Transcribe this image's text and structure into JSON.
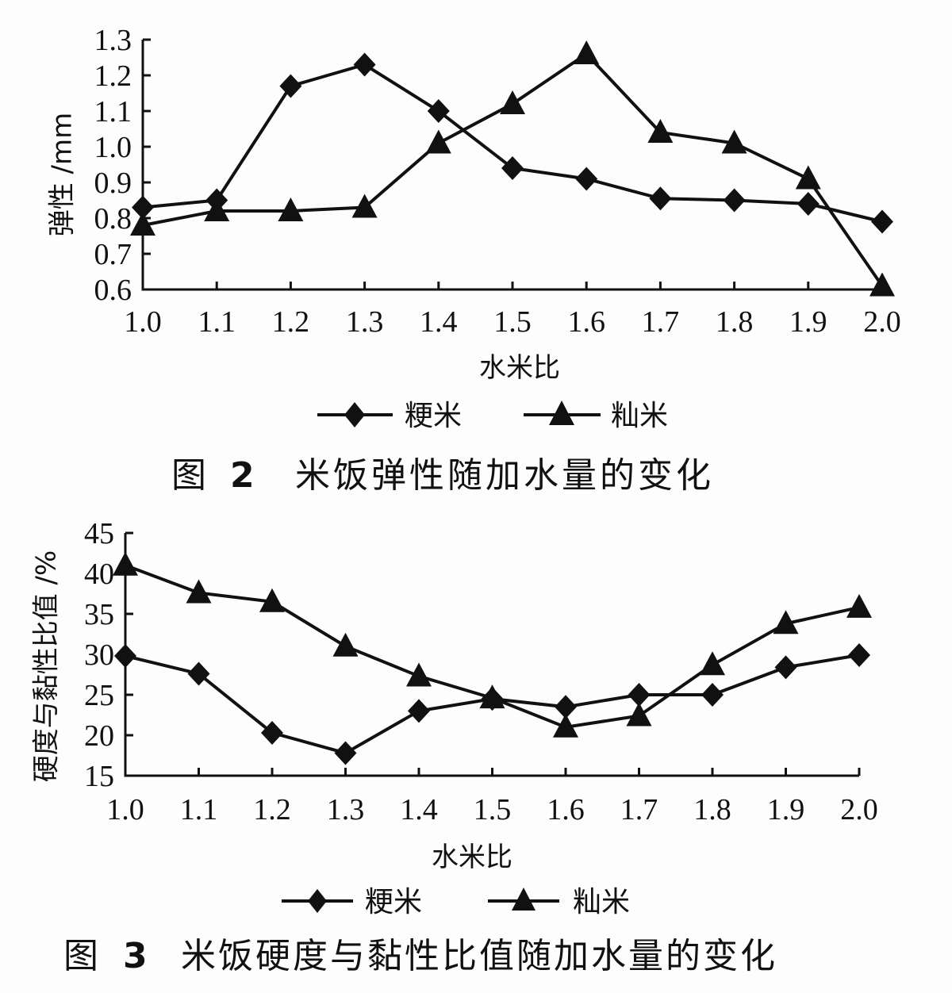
{
  "chart_data": [
    {
      "type": "line",
      "title": "图 2  米饭弹性随加水量的变化",
      "xlabel": "水米比",
      "ylabel": "弹性 /mm",
      "x": [
        1.0,
        1.1,
        1.2,
        1.3,
        1.4,
        1.5,
        1.6,
        1.7,
        1.8,
        1.9,
        2.0
      ],
      "x_tick_labels": [
        "1.0",
        "1.1",
        "1.2",
        "1.3",
        "1.4",
        "1.5",
        "1.6",
        "1.7",
        "1.8",
        "1.9",
        "2.0"
      ],
      "y_tick_labels": [
        "0.6",
        "0.7",
        "0.8",
        "0.9",
        "1.0",
        "1.1",
        "1.2",
        "1.3"
      ],
      "ylim": [
        0.6,
        1.3
      ],
      "grid": false,
      "legend_position": "bottom",
      "series": [
        {
          "name": "粳米",
          "marker": "diamond",
          "values": [
            0.83,
            0.85,
            1.17,
            1.23,
            1.1,
            0.94,
            0.91,
            0.855,
            0.85,
            0.84,
            0.79
          ]
        },
        {
          "name": "籼米",
          "marker": "triangle",
          "values": [
            0.78,
            0.82,
            0.82,
            0.83,
            1.01,
            1.12,
            1.26,
            1.04,
            1.01,
            0.91,
            0.61
          ]
        }
      ]
    },
    {
      "type": "line",
      "title": "图 3  米饭硬度与黏性比值随加水量的变化",
      "xlabel": "水米比",
      "ylabel": "硬度与黏性比值 /%",
      "x": [
        1.0,
        1.1,
        1.2,
        1.3,
        1.4,
        1.5,
        1.6,
        1.7,
        1.8,
        1.9,
        2.0
      ],
      "x_tick_labels": [
        "1.0",
        "1.1",
        "1.2",
        "1.3",
        "1.4",
        "1.5",
        "1.6",
        "1.7",
        "1.8",
        "1.9",
        "2.0"
      ],
      "y_tick_labels": [
        "15",
        "20",
        "25",
        "30",
        "35",
        "40",
        "45"
      ],
      "ylim": [
        15,
        45
      ],
      "grid": false,
      "legend_position": "bottom",
      "series": [
        {
          "name": "粳米",
          "marker": "diamond",
          "values": [
            29.8,
            27.6,
            20.3,
            17.8,
            23.0,
            24.5,
            23.5,
            25.0,
            25.0,
            28.4,
            29.9
          ]
        },
        {
          "name": "籼米",
          "marker": "triangle",
          "values": [
            41.0,
            37.6,
            36.5,
            31.0,
            27.3,
            24.6,
            21.0,
            22.4,
            28.7,
            33.8,
            35.8
          ]
        }
      ]
    }
  ],
  "figure2": {
    "ylabel": "弹性 /mm",
    "xlabel": "水米比",
    "legend": [
      "粳米",
      "籼米"
    ],
    "caption_prefix": "图",
    "caption_number": "2",
    "caption_text": "米饭弹性随加水量的变化"
  },
  "figure3": {
    "ylabel": "硬度与黏性比值 /%",
    "xlabel": "水米比",
    "legend": [
      "粳米",
      "籼米"
    ],
    "caption_prefix": "图",
    "caption_number": "3",
    "caption_text": "米饭硬度与黏性比值随加水量的变化"
  }
}
